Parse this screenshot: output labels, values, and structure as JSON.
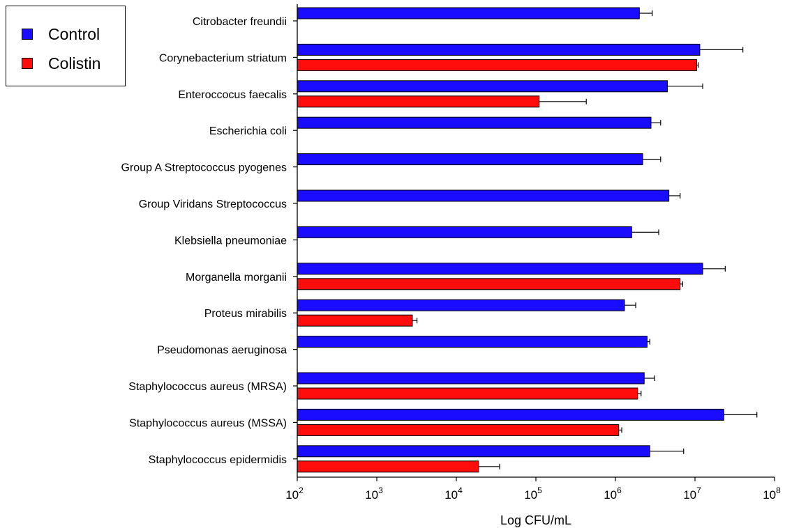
{
  "chart_data": {
    "type": "bar",
    "orientation": "horizontal",
    "title": "",
    "xlabel": "Log CFU/mL",
    "ylabel": "",
    "x_scale": "log",
    "xlim": [
      100,
      100000000
    ],
    "x_ticks": [
      {
        "base": "10",
        "exp": "2",
        "value": 100
      },
      {
        "base": "10",
        "exp": "3",
        "value": 1000
      },
      {
        "base": "10",
        "exp": "4",
        "value": 10000
      },
      {
        "base": "10",
        "exp": "5",
        "value": 100000
      },
      {
        "base": "10",
        "exp": "6",
        "value": 1000000
      },
      {
        "base": "10",
        "exp": "7",
        "value": 10000000
      },
      {
        "base": "10",
        "exp": "8",
        "value": 100000000
      }
    ],
    "grid": false,
    "legend_position": "top-left",
    "categories": [
      "Citrobacter freundii",
      "Corynebacterium striatum",
      "Enteroccocus faecalis",
      "Escherichia coli",
      "Group A Streptococcus pyogenes",
      "Group Viridans Streptococcus",
      "Klebsiella pneumoniae",
      "Morganella morganii",
      "Proteus mirabilis",
      "Pseudomonas aeruginosa",
      "Staphylococcus aureus (MRSA)",
      "Staphylococcus aureus (MSSA)",
      "Staphylococcus epidermidis"
    ],
    "series": [
      {
        "name": "Control",
        "color": "#1a0dff",
        "values": [
          2000000,
          11500000,
          4500000,
          2800000,
          2200000,
          4700000,
          1600000,
          12500000,
          1300000,
          2500000,
          2300000,
          23000000,
          2700000
        ],
        "error_upper": [
          2900000,
          40000000,
          12500000,
          3700000,
          3700000,
          6500000,
          3500000,
          24000000,
          1800000,
          2700000,
          3100000,
          60000000,
          7200000
        ]
      },
      {
        "name": "Colistin",
        "color": "#ff0d0d",
        "values": [
          null,
          10500000,
          110000,
          null,
          null,
          null,
          null,
          6500000,
          2800,
          null,
          1900000,
          1100000,
          19000
        ],
        "error_upper": [
          null,
          11000000,
          430000,
          null,
          null,
          null,
          null,
          7000000,
          3200,
          null,
          2100000,
          1200000,
          35000
        ]
      }
    ]
  },
  "legend": {
    "items": [
      {
        "label": "Control",
        "color": "#1a0dff"
      },
      {
        "label": "Colistin",
        "color": "#ff0d0d"
      }
    ]
  }
}
